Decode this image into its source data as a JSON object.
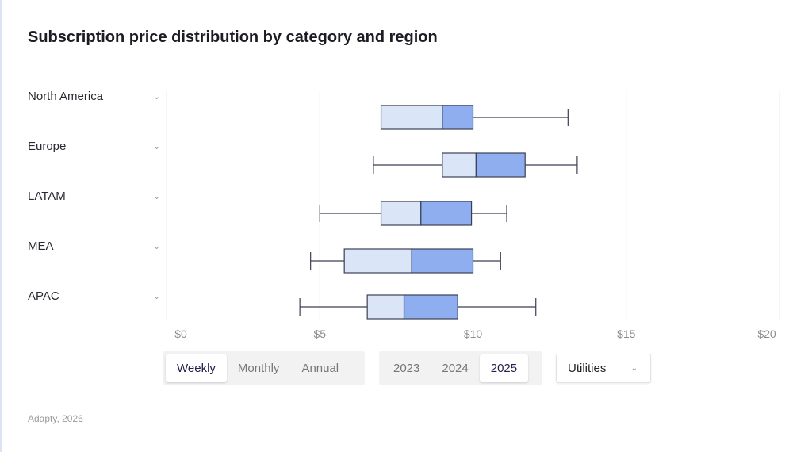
{
  "title": "Subscription price distribution by category and region",
  "chart_data": {
    "type": "boxplot",
    "orientation": "horizontal",
    "categories": [
      "North America",
      "Europe",
      "LATAM",
      "MEA",
      "APAC"
    ],
    "boxes": [
      {
        "min": 7.0,
        "q1": 7.0,
        "median": 9.0,
        "q3": 10.0,
        "max": 13.1
      },
      {
        "min": 6.75,
        "q1": 9.0,
        "median": 10.1,
        "q3": 11.7,
        "max": 13.4
      },
      {
        "min": 5.0,
        "q1": 7.0,
        "median": 8.3,
        "q3": 9.95,
        "max": 11.1
      },
      {
        "min": 4.7,
        "q1": 5.8,
        "median": 8.0,
        "q3": 10.0,
        "max": 10.9
      },
      {
        "min": 4.35,
        "q1": 6.55,
        "median": 7.75,
        "q3": 9.5,
        "max": 12.05
      }
    ],
    "xlim": [
      0,
      20
    ],
    "xticks": [
      0,
      5,
      10,
      15,
      20
    ],
    "xtick_labels": [
      "$0",
      "$5",
      "$10",
      "$15",
      "$20"
    ],
    "grid": true,
    "colors": {
      "lower_box": "#dae6f8",
      "upper_box": "#8eaeef",
      "stroke": "#3b3f55",
      "grid": "#ececef"
    }
  },
  "controls": {
    "period": {
      "options": [
        "Weekly",
        "Monthly",
        "Annual"
      ],
      "selected": "Weekly"
    },
    "year": {
      "options": [
        "2023",
        "2024",
        "2025"
      ],
      "selected": "2025"
    },
    "category": {
      "selected": "Utilities"
    }
  },
  "source": "Adapty, 2026"
}
